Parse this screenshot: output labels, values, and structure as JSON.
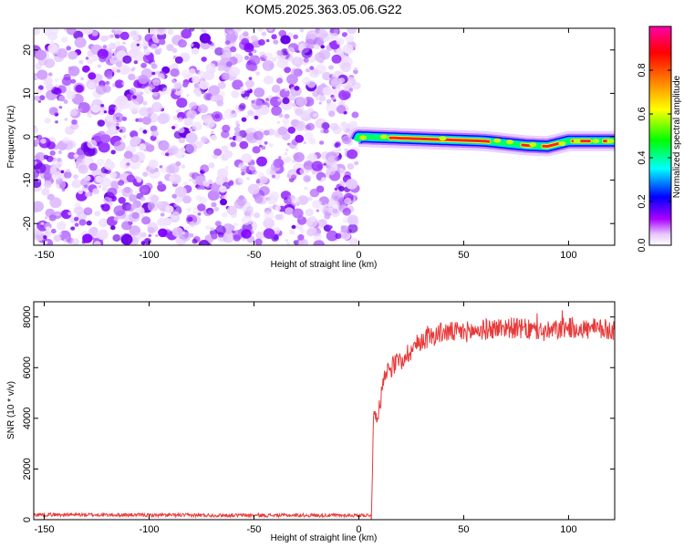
{
  "page_title": "KOM5.2025.363.05.06.G22",
  "chart_data": [
    {
      "type": "heatmap",
      "title": "KOM5.2025.363.05.06.G22",
      "xlabel": "Height of straight line (km)",
      "ylabel": "Frequency (Hz)",
      "xlim": [
        -155,
        122
      ],
      "ylim": [
        -25,
        25
      ],
      "x_ticks": [
        -150,
        -100,
        -50,
        0,
        50,
        100
      ],
      "y_ticks": [
        -20,
        -10,
        0,
        10,
        20
      ],
      "colorbar": {
        "label": "Normalized spectral amplitude",
        "range": [
          0.0,
          1.0
        ],
        "ticks": [
          0.0,
          0.2,
          0.4,
          0.6,
          0.8
        ],
        "tick_labels": [
          "0.0",
          "0.2",
          "0.4",
          "0.6",
          "0.8"
        ],
        "colors": [
          "#ffffff",
          "#cc00ff",
          "#0000ff",
          "#00ffff",
          "#00ff00",
          "#ffff00",
          "#ff8000",
          "#ff0000",
          "#ff00aa"
        ]
      },
      "regions": [
        {
          "name": "noise",
          "x_range": [
            -155,
            -1
          ],
          "description": "scattered low-amplitude noise"
        },
        {
          "name": "signal",
          "x_range": [
            -1,
            122
          ],
          "center_frequency_hz": [
            [
              0,
              0
            ],
            [
              60,
              -1
            ],
            [
              80,
              -2
            ],
            [
              90,
              -2.2
            ],
            [
              100,
              -1
            ],
            [
              122,
              -1
            ]
          ]
        }
      ]
    },
    {
      "type": "line",
      "xlabel": "Height of straight line (km)",
      "ylabel": "SNR (10 * v/v)",
      "xlim": [
        -155,
        122
      ],
      "ylim": [
        0,
        8600
      ],
      "x_ticks": [
        -150,
        -100,
        -50,
        0,
        50,
        100
      ],
      "y_ticks": [
        0,
        2000,
        4000,
        6000,
        8000
      ],
      "series": [
        {
          "name": "SNR",
          "color": "#e83a3a",
          "x": [
            -155,
            -100,
            -50,
            0,
            6,
            7,
            8,
            10,
            12,
            15,
            20,
            25,
            30,
            40,
            50,
            60,
            70,
            80,
            90,
            100,
            110,
            122
          ],
          "values": [
            200,
            180,
            170,
            170,
            180,
            4000,
            4100,
            4400,
            5800,
            6000,
            6300,
            6700,
            7100,
            7400,
            7400,
            7500,
            7600,
            7500,
            7400,
            7600,
            7500,
            7500
          ]
        }
      ]
    }
  ]
}
